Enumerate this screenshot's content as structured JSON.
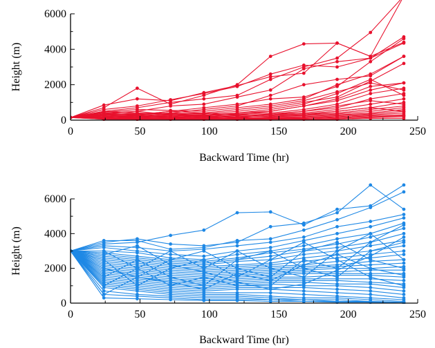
{
  "chart_data": [
    {
      "type": "line",
      "xlabel": "Backward Time (hr)",
      "ylabel": "Height (m)",
      "xlim": [
        0,
        250
      ],
      "ylim": [
        0,
        6000
      ],
      "xticks": [
        0,
        50,
        100,
        150,
        200,
        250
      ],
      "yticks": [
        0,
        2000,
        4000,
        6000
      ],
      "grid": false,
      "marker": "circle",
      "color": "#e8112d",
      "x": [
        0,
        24,
        48,
        72,
        96,
        120,
        144,
        168,
        192,
        216,
        240
      ],
      "series": [
        {
          "values": [
            150,
            700,
            1800,
            900,
            1400,
            2000,
            3600,
            4300,
            4350,
            3600,
            7000
          ]
        },
        {
          "values": [
            150,
            850,
            1200,
            1100,
            1550,
            1950,
            2450,
            2650,
            4350,
            3600,
            4400
          ]
        },
        {
          "values": [
            150,
            600,
            800,
            1150,
            1500,
            1900,
            2600,
            3100,
            3000,
            3500,
            4700
          ]
        },
        {
          "values": [
            150,
            500,
            700,
            1000,
            1200,
            1400,
            2300,
            3000,
            3500,
            4950,
            7000
          ]
        },
        {
          "values": [
            150,
            400,
            500,
            800,
            900,
            1300,
            1700,
            2900,
            3300,
            3500,
            4350
          ]
        },
        {
          "values": [
            150,
            300,
            350,
            400,
            600,
            800,
            1400,
            2000,
            2300,
            2500,
            3600
          ]
        },
        {
          "values": [
            150,
            200,
            300,
            500,
            700,
            900,
            1200,
            1300,
            1900,
            3300,
            4600
          ]
        },
        {
          "values": [
            150,
            450,
            600,
            550,
            500,
            700,
            900,
            1200,
            2000,
            2600,
            3600
          ]
        },
        {
          "values": [
            150,
            350,
            300,
            400,
            350,
            500,
            700,
            1000,
            1300,
            2200,
            3200
          ]
        },
        {
          "values": [
            150,
            250,
            200,
            300,
            250,
            400,
            500,
            800,
            1100,
            1700,
            2100
          ]
        },
        {
          "values": [
            150,
            300,
            400,
            350,
            300,
            350,
            400,
            600,
            900,
            1500,
            1800
          ]
        },
        {
          "values": [
            150,
            200,
            250,
            200,
            300,
            250,
            350,
            500,
            700,
            1200,
            1500
          ]
        },
        {
          "values": [
            150,
            150,
            200,
            250,
            200,
            300,
            300,
            400,
            600,
            900,
            1200
          ]
        },
        {
          "values": [
            150,
            400,
            300,
            200,
            150,
            200,
            300,
            350,
            500,
            700,
            1000
          ]
        },
        {
          "values": [
            150,
            250,
            150,
            100,
            200,
            150,
            250,
            300,
            400,
            600,
            800
          ]
        },
        {
          "values": [
            150,
            100,
            150,
            200,
            100,
            200,
            200,
            250,
            350,
            500,
            700
          ]
        },
        {
          "values": [
            150,
            300,
            200,
            150,
            250,
            100,
            150,
            200,
            300,
            400,
            600
          ]
        },
        {
          "values": [
            150,
            200,
            100,
            150,
            150,
            150,
            100,
            150,
            250,
            350,
            500
          ]
        },
        {
          "values": [
            150,
            100,
            100,
            100,
            100,
            100,
            150,
            100,
            200,
            300,
            400
          ]
        },
        {
          "values": [
            150,
            150,
            100,
            50,
            50,
            100,
            100,
            100,
            150,
            250,
            300
          ]
        },
        {
          "values": [
            150,
            50,
            50,
            100,
            100,
            50,
            50,
            50,
            100,
            200,
            250
          ]
        },
        {
          "values": [
            150,
            100,
            50,
            50,
            50,
            50,
            100,
            50,
            50,
            150,
            200
          ]
        },
        {
          "values": [
            150,
            50,
            50,
            50,
            50,
            50,
            50,
            50,
            50,
            100,
            100
          ]
        },
        {
          "values": [
            150,
            350,
            500,
            300,
            200,
            300,
            500,
            800,
            1200,
            1900,
            2100
          ]
        },
        {
          "values": [
            150,
            200,
            300,
            500,
            400,
            600,
            800,
            1100,
            1600,
            2100,
            1700
          ]
        },
        {
          "values": [
            150,
            500,
            400,
            300,
            300,
            400,
            600,
            900,
            1500,
            2300,
            1400
          ]
        },
        {
          "values": [
            150,
            300,
            250,
            350,
            400,
            300,
            300,
            500,
            800,
            1100,
            900
          ]
        },
        {
          "values": [
            150,
            100,
            200,
            300,
            250,
            200,
            200,
            300,
            500,
            700,
            500
          ]
        }
      ]
    },
    {
      "type": "line",
      "xlabel": "Backward Time (hr)",
      "ylabel": "Height (m)",
      "xlim": [
        0,
        250
      ],
      "ylim": [
        0,
        6000
      ],
      "xticks": [
        0,
        50,
        100,
        150,
        200,
        250
      ],
      "yticks": [
        0,
        2000,
        4000,
        6000
      ],
      "grid": false,
      "marker": "circle",
      "color": "#1e88e5",
      "x": [
        0,
        24,
        48,
        72,
        96,
        120,
        144,
        168,
        192,
        216,
        240
      ],
      "series": [
        {
          "values": [
            3000,
            3400,
            3500,
            3900,
            4200,
            5200,
            5250,
            4500,
            5400,
            5600,
            6800
          ]
        },
        {
          "values": [
            3000,
            3500,
            3700,
            3400,
            3300,
            3500,
            4400,
            4600,
            5200,
            6800,
            5400
          ]
        },
        {
          "values": [
            3000,
            3600,
            3600,
            3100,
            3200,
            3600,
            3700,
            4200,
            4800,
            5500,
            6400
          ]
        },
        {
          "values": [
            3000,
            3300,
            3200,
            3000,
            3100,
            3300,
            3500,
            3800,
            4400,
            4700,
            5100
          ]
        },
        {
          "values": [
            3000,
            3200,
            3000,
            2800,
            2700,
            3000,
            3200,
            3600,
            4000,
            4400,
            4900
          ]
        },
        {
          "values": [
            3000,
            3000,
            2900,
            2600,
            2500,
            2800,
            3000,
            3300,
            3700,
            4000,
            4600
          ]
        },
        {
          "values": [
            3000,
            2900,
            2700,
            2500,
            2400,
            2600,
            2900,
            3100,
            3400,
            3800,
            4300
          ]
        },
        {
          "values": [
            3000,
            2800,
            2600,
            2400,
            2300,
            2500,
            2700,
            3000,
            3200,
            3500,
            4000
          ]
        },
        {
          "values": [
            3000,
            2700,
            2500,
            2300,
            2200,
            2400,
            2500,
            2800,
            3000,
            3300,
            3600
          ]
        },
        {
          "values": [
            3000,
            2600,
            2400,
            2200,
            2100,
            2200,
            2300,
            2600,
            2800,
            3000,
            3300
          ]
        },
        {
          "values": [
            3000,
            2500,
            2300,
            2100,
            2000,
            2100,
            2200,
            2400,
            2600,
            2800,
            3000
          ]
        },
        {
          "values": [
            3000,
            2400,
            2200,
            2000,
            1900,
            2000,
            2100,
            2200,
            2400,
            2600,
            2800
          ]
        },
        {
          "values": [
            3000,
            2300,
            2100,
            1900,
            1800,
            1900,
            2000,
            2100,
            2200,
            2400,
            2500
          ]
        },
        {
          "values": [
            3000,
            2200,
            2000,
            1800,
            1700,
            1800,
            1900,
            2000,
            2100,
            2200,
            2300
          ]
        },
        {
          "values": [
            3000,
            2100,
            1900,
            1700,
            1600,
            1700,
            1800,
            1900,
            2000,
            2000,
            2100
          ]
        },
        {
          "values": [
            3000,
            2000,
            1800,
            1600,
            1500,
            1600,
            1700,
            1800,
            1800,
            1900,
            1900
          ]
        },
        {
          "values": [
            3000,
            1900,
            1700,
            1500,
            1400,
            1500,
            1600,
            1700,
            1700,
            1700,
            1700
          ]
        },
        {
          "values": [
            3000,
            1800,
            1600,
            1400,
            1300,
            1400,
            1500,
            1500,
            1600,
            1600,
            1500
          ]
        },
        {
          "values": [
            3000,
            1700,
            1500,
            1300,
            1200,
            1300,
            1400,
            1400,
            1400,
            1400,
            1300
          ]
        },
        {
          "values": [
            3000,
            1600,
            1400,
            1200,
            1100,
            1200,
            1300,
            1300,
            1300,
            1200,
            1100
          ]
        },
        {
          "values": [
            3000,
            1500,
            1300,
            1100,
            1000,
            1100,
            1200,
            1200,
            1100,
            1100,
            900
          ]
        },
        {
          "values": [
            3000,
            1400,
            1200,
            1000,
            900,
            1000,
            1100,
            1000,
            1000,
            900,
            700
          ]
        },
        {
          "values": [
            3000,
            1300,
            1100,
            900,
            800,
            900,
            900,
            900,
            800,
            700,
            500
          ]
        },
        {
          "values": [
            3000,
            1200,
            1000,
            800,
            700,
            800,
            800,
            700,
            600,
            500,
            300
          ]
        },
        {
          "values": [
            3000,
            1100,
            900,
            700,
            600,
            600,
            600,
            500,
            400,
            300,
            200
          ]
        },
        {
          "values": [
            3000,
            1000,
            800,
            600,
            500,
            500,
            400,
            300,
            300,
            200,
            100
          ]
        },
        {
          "values": [
            3000,
            900,
            700,
            500,
            400,
            400,
            300,
            200,
            200,
            100,
            50
          ]
        },
        {
          "values": [
            3000,
            700,
            500,
            400,
            300,
            300,
            200,
            200,
            100,
            100,
            50
          ]
        },
        {
          "values": [
            3000,
            500,
            400,
            300,
            200,
            200,
            200,
            100,
            100,
            50,
            0
          ]
        },
        {
          "values": [
            3000,
            300,
            250,
            200,
            150,
            150,
            100,
            100,
            50,
            50,
            0
          ]
        },
        {
          "values": [
            3000,
            2000,
            1500,
            2500,
            3000,
            2000,
            1500,
            3000,
            3500,
            2500,
            2000
          ]
        },
        {
          "values": [
            3000,
            1500,
            2500,
            1500,
            1000,
            2500,
            3000,
            2000,
            1500,
            3000,
            3500
          ]
        },
        {
          "values": [
            3000,
            2500,
            1000,
            2000,
            2500,
            1500,
            2500,
            3500,
            2500,
            1500,
            1000
          ]
        },
        {
          "values": [
            3000,
            1000,
            2000,
            3000,
            2000,
            3000,
            2000,
            1500,
            3000,
            4000,
            2500
          ]
        },
        {
          "values": [
            3000,
            3000,
            2000,
            1000,
            1500,
            1000,
            1000,
            2500,
            2000,
            3500,
            4500
          ]
        },
        {
          "values": [
            3000,
            500,
            1500,
            1200,
            800,
            1700,
            1300,
            2200,
            2800,
            2000,
            1600
          ]
        },
        {
          "values": [
            3000,
            2800,
            3300,
            2200,
            1800,
            1200,
            800,
            1100,
            1900,
            2700,
            3800
          ]
        }
      ]
    }
  ]
}
